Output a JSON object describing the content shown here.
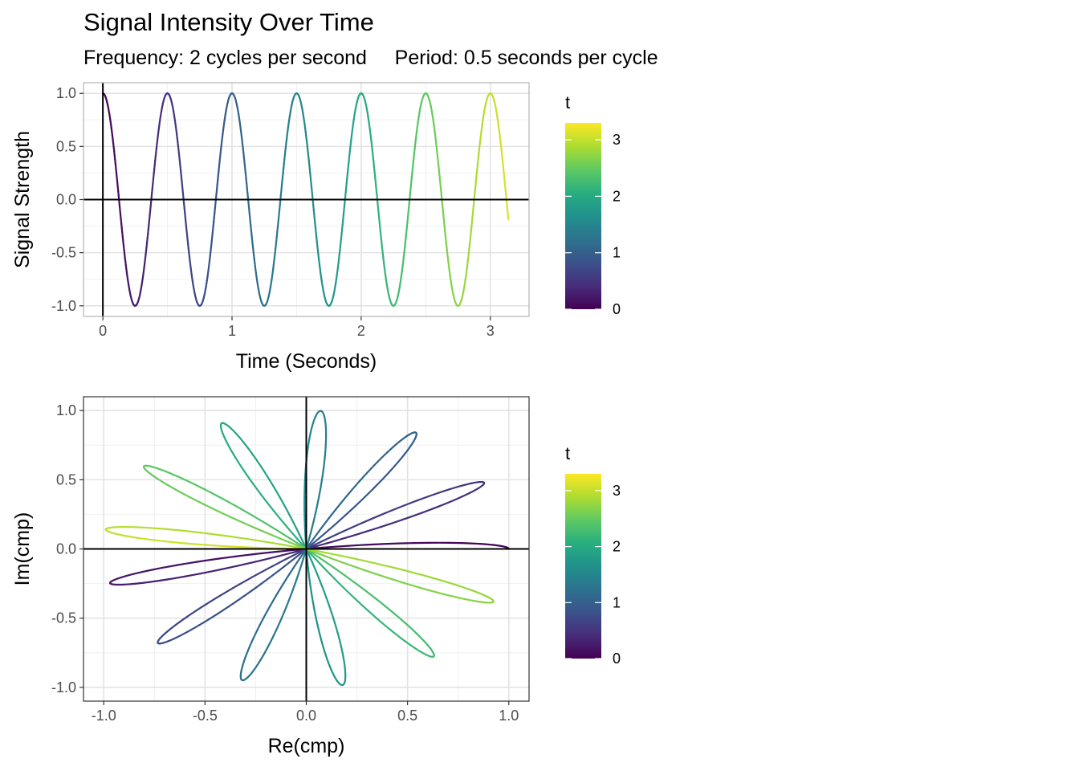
{
  "title": "Signal Intensity Over Time",
  "subtitle": "Frequency: 2 cycles per second     Period: 0.5 seconds per cycle",
  "chart_data": [
    {
      "type": "line",
      "description_of_series": "y = cos(2*pi*2*t), colored by t",
      "frequency_cycles_per_second": 2,
      "period_seconds": 0.5,
      "t_range": [
        0,
        3.14
      ],
      "xlabel": "Time (Seconds)",
      "ylabel": "Signal Strength",
      "xlim": [
        -0.15,
        3.3
      ],
      "ylim": [
        -1.1,
        1.1
      ],
      "xticks": [
        0,
        1,
        2,
        3
      ],
      "xtick_labels": [
        "0",
        "1",
        "2",
        "3"
      ],
      "yticks": [
        -1,
        -0.5,
        0,
        0.5,
        1
      ],
      "ytick_labels": [
        "-1.0",
        "-0.5",
        "0.0",
        "0.5",
        "1.0"
      ],
      "grid": true,
      "reference_lines": {
        "x": 0,
        "y": 0
      },
      "color_scale": "viridis",
      "legend": {
        "title": "t",
        "ticks": [
          0,
          1,
          2,
          3
        ],
        "tick_labels": [
          "0",
          "1",
          "2",
          "3"
        ],
        "range": [
          0,
          3.3
        ],
        "placement": "right"
      }
    },
    {
      "type": "line",
      "description_of_series": "cmp = y * exp(i*t); Re vs Im, colored by t",
      "t_range": [
        0,
        3.14
      ],
      "xlabel": "Re(cmp)",
      "ylabel": "Im(cmp)",
      "xlim": [
        -1.1,
        1.1
      ],
      "ylim": [
        -1.1,
        1.1
      ],
      "xticks": [
        -1,
        -0.5,
        0,
        0.5,
        1
      ],
      "xtick_labels": [
        "-1.0",
        "-0.5",
        "0.0",
        "0.5",
        "1.0"
      ],
      "yticks": [
        -1,
        -0.5,
        0,
        0.5,
        1
      ],
      "ytick_labels": [
        "-1.0",
        "-0.5",
        "0.0",
        "0.5",
        "1.0"
      ],
      "grid": true,
      "reference_lines": {
        "x": 0,
        "y": 0
      },
      "color_scale": "viridis",
      "legend": {
        "title": "t",
        "ticks": [
          0,
          1,
          2,
          3
        ],
        "tick_labels": [
          "0",
          "1",
          "2",
          "3"
        ],
        "range": [
          0,
          3.3
        ],
        "placement": "right"
      }
    }
  ]
}
